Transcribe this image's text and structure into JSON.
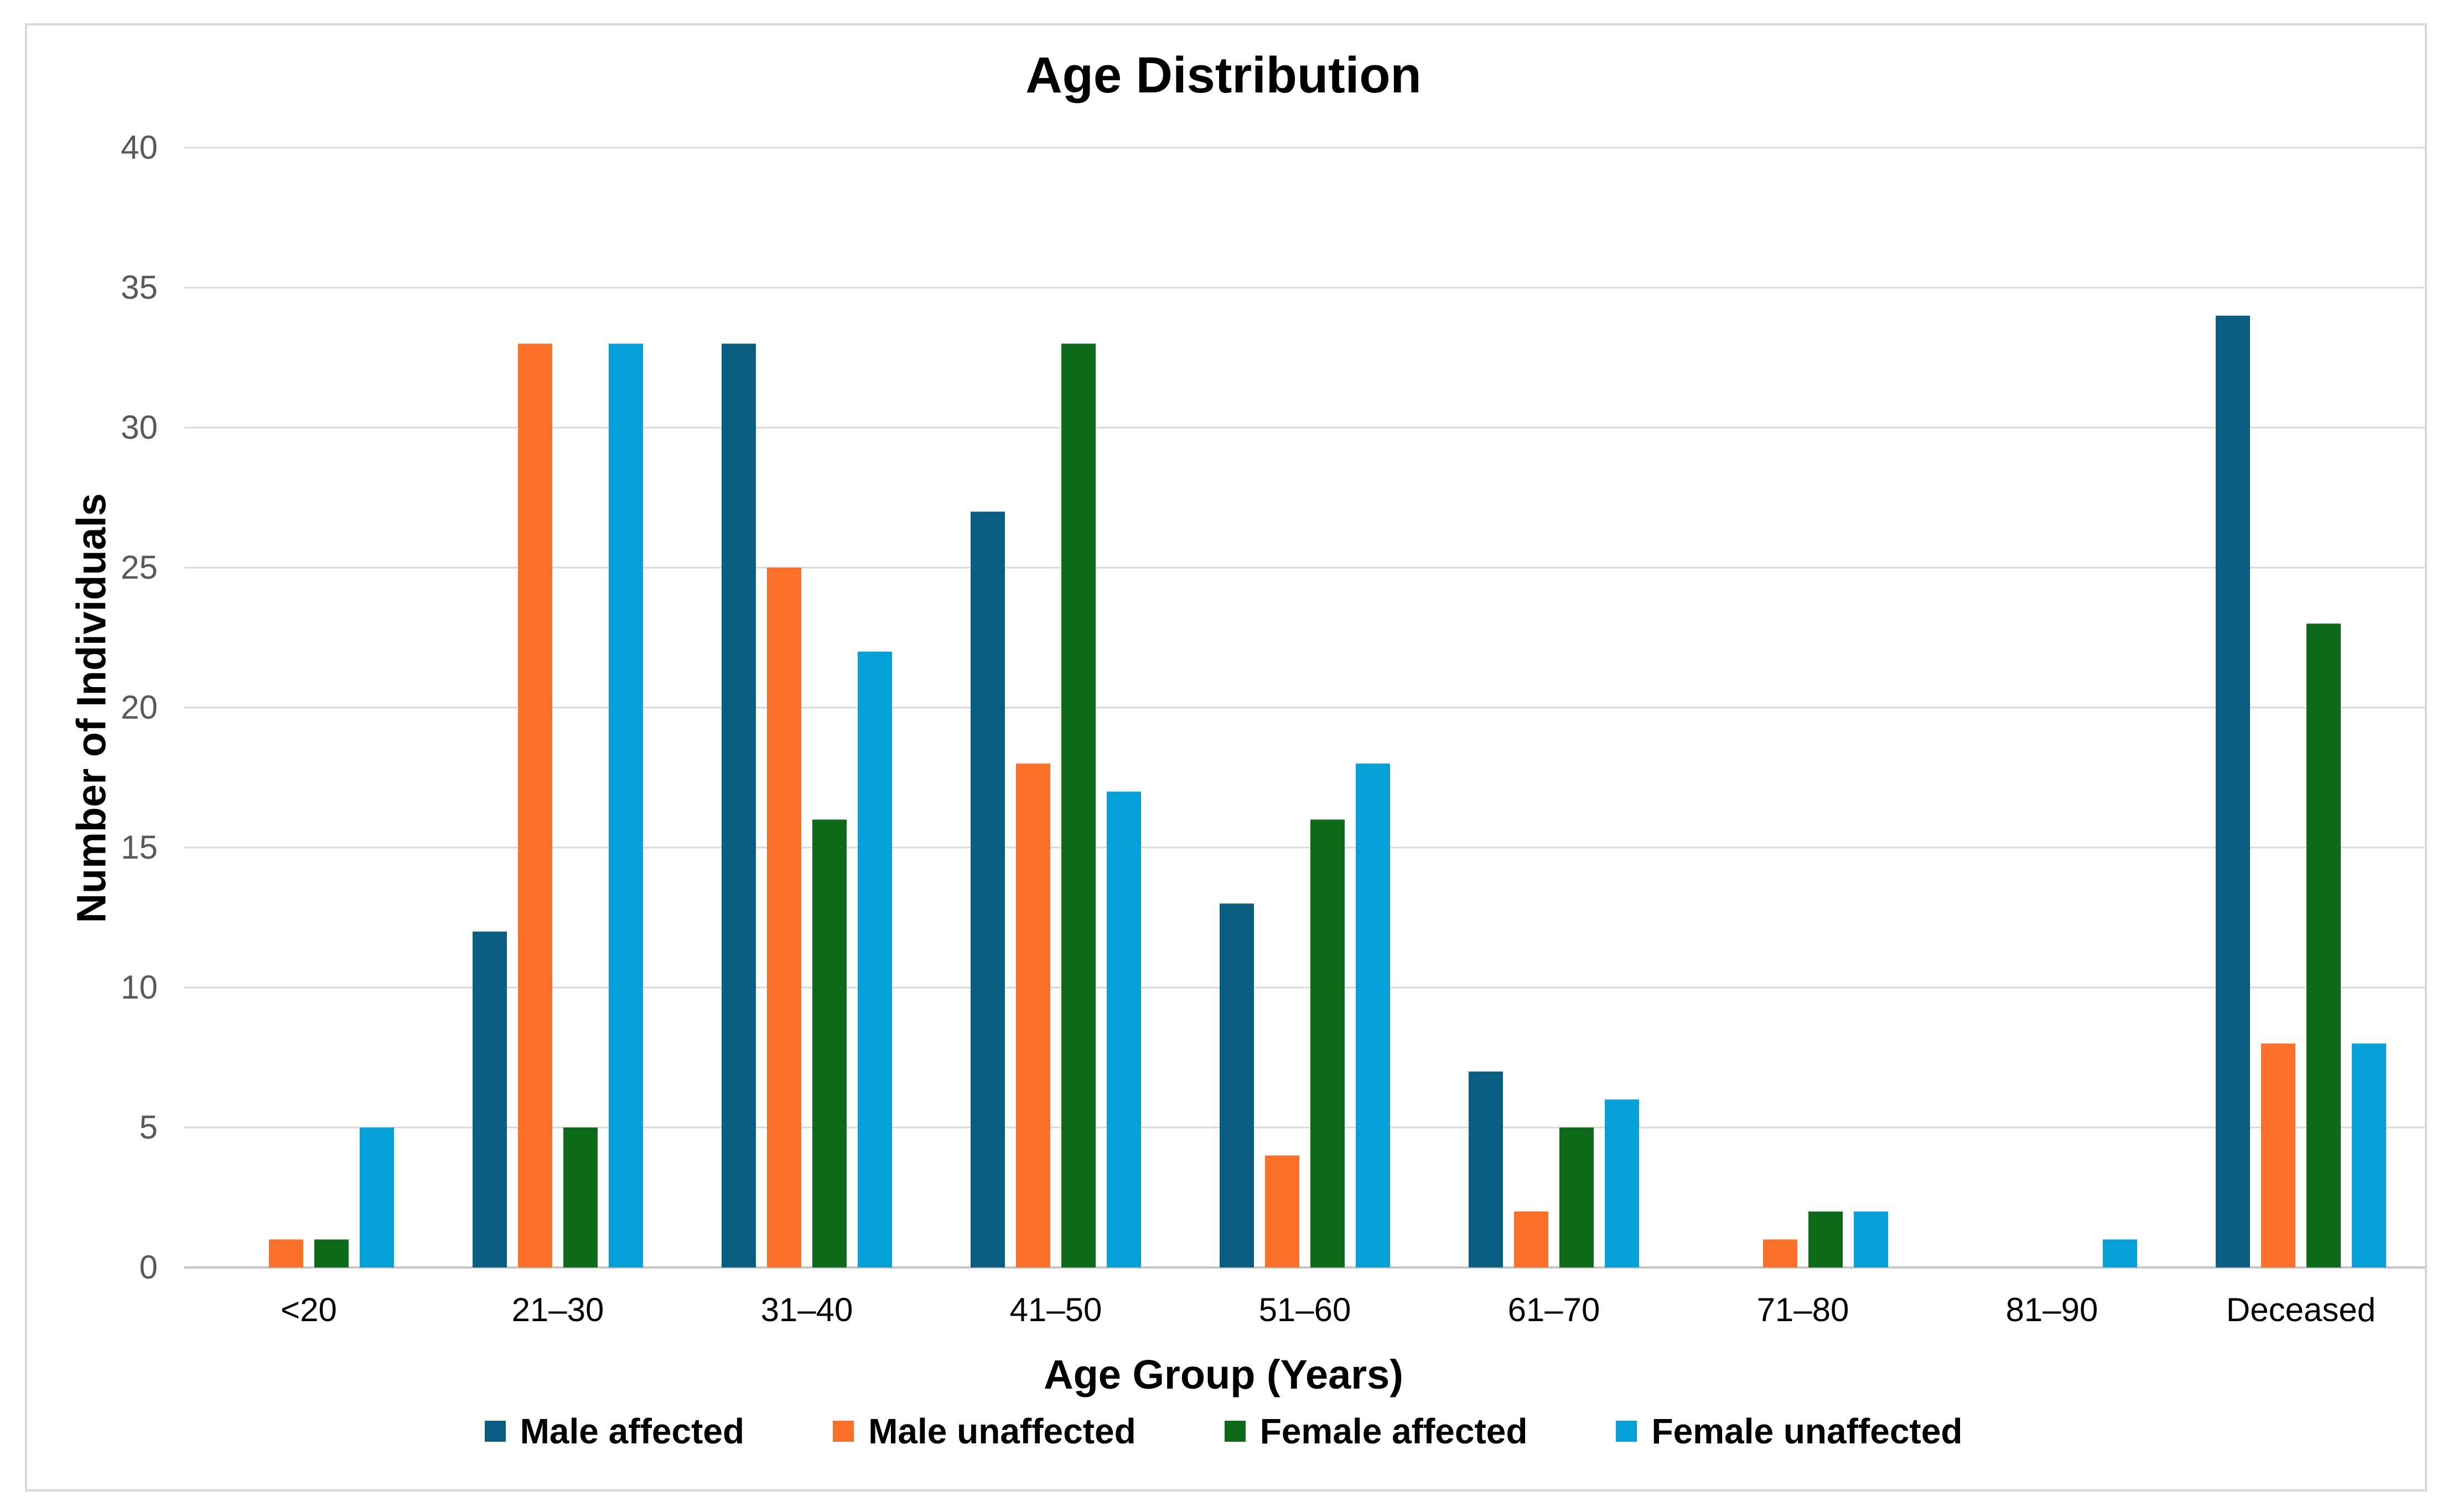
{
  "chart_data": {
    "type": "bar",
    "title": "Age Distribution",
    "xlabel": "Age Group (Years)",
    "ylabel": "Number of Individuals",
    "categories": [
      "<20",
      "21–30",
      "31–40",
      "41–50",
      "51–60",
      "61–70",
      "71–80",
      "81–90",
      "Deceased"
    ],
    "series": [
      {
        "name": "Male affected",
        "color": "#0A5E82",
        "values": [
          0,
          12,
          33,
          27,
          13,
          7,
          0,
          0,
          34
        ]
      },
      {
        "name": "Male unaffected",
        "color": "#FA7029",
        "values": [
          1,
          33,
          25,
          18,
          4,
          2,
          1,
          0,
          8
        ]
      },
      {
        "name": "Female affected",
        "color": "#0C6A18",
        "values": [
          1,
          5,
          16,
          33,
          16,
          5,
          2,
          0,
          23
        ]
      },
      {
        "name": "Female unaffected",
        "color": "#05A0D8",
        "values": [
          5,
          33,
          22,
          17,
          18,
          6,
          2,
          1,
          8
        ]
      }
    ],
    "ylim": [
      0,
      40
    ],
    "yticks": [
      0,
      5,
      10,
      15,
      20,
      25,
      30,
      35,
      40
    ],
    "grid": true,
    "legend_position": "bottom",
    "grid_color": "#D9D9D9",
    "axis_line_color": "#C6C6C6",
    "tick_label_color": "#595959",
    "category_label_color": "#000000",
    "frame_border_color": "#D9D9D9"
  }
}
